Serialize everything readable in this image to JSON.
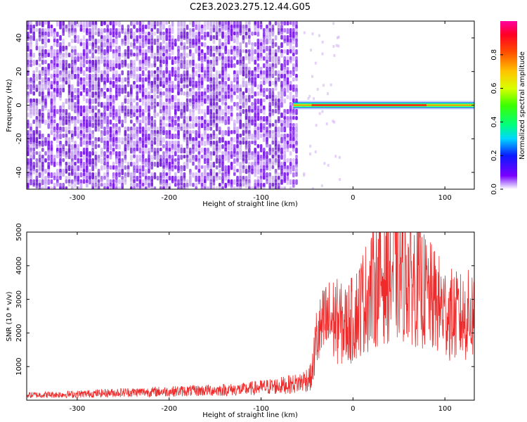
{
  "title": "C2E3.2023.275.12.44.G05",
  "colors": {
    "noise": "#7a1ee6",
    "noise_light": "#c9a6f2",
    "snr_line": "#ee2a2a",
    "axis": "#000000"
  },
  "chart_data": [
    {
      "type": "heatmap",
      "xlabel": "Height of straight line (km)",
      "ylabel": "Frequency (Hz)",
      "xlim": [
        -355,
        132
      ],
      "ylim": [
        -50,
        50
      ],
      "xticks": [
        -300,
        -200,
        -100,
        0,
        100
      ],
      "yticks": [
        -40,
        -20,
        0,
        20,
        40
      ],
      "xtick_labels": [
        "-300",
        "-200",
        "-100",
        "0",
        "100"
      ],
      "ytick_labels": [
        "-40",
        "-20",
        "0",
        "20",
        "40"
      ],
      "noise_region_x": [
        -355,
        -60
      ],
      "signal_band": {
        "x": [
          -65,
          132
        ],
        "frequency_center": 0,
        "peak_amplitude": 1.0
      },
      "grid": false
    },
    {
      "type": "colorbar",
      "label": "Normalized spectral amplitude",
      "range": [
        0,
        1
      ],
      "ticks": [
        0.0,
        0.2,
        0.4,
        0.6,
        0.8
      ],
      "tick_labels": [
        "0.0",
        "0.2",
        "0.4",
        "0.6",
        "0.8"
      ],
      "colormap": "gist_rainbow_r"
    },
    {
      "type": "line",
      "xlabel": "Height of straight line (km)",
      "ylabel": "SNR (10 * v/v)",
      "xlim": [
        -355,
        132
      ],
      "ylim": [
        0,
        5000
      ],
      "xticks": [
        -300,
        -200,
        -100,
        0,
        100
      ],
      "yticks": [
        1000,
        2000,
        3000,
        4000,
        5000
      ],
      "xtick_labels": [
        "-300",
        "-200",
        "-100",
        "0",
        "100"
      ],
      "ytick_labels": [
        "1000",
        "2000",
        "3000",
        "4000",
        "5000"
      ],
      "series": [
        {
          "x": [
            -355,
            -300,
            -250,
            -200,
            -150,
            -120,
            -100,
            -80,
            -60,
            -45,
            -40,
            -30,
            -20,
            -10,
            0,
            10,
            20,
            30,
            40,
            50,
            60,
            70,
            80,
            90,
            100,
            110,
            120,
            132
          ],
          "y": [
            150,
            180,
            230,
            260,
            300,
            320,
            380,
            430,
            500,
            700,
            1800,
            2300,
            2400,
            2200,
            2400,
            2900,
            3300,
            3650,
            3750,
            3800,
            3700,
            3450,
            3150,
            2900,
            2650,
            2500,
            2450,
            2600
          ]
        }
      ],
      "grid": false
    }
  ]
}
